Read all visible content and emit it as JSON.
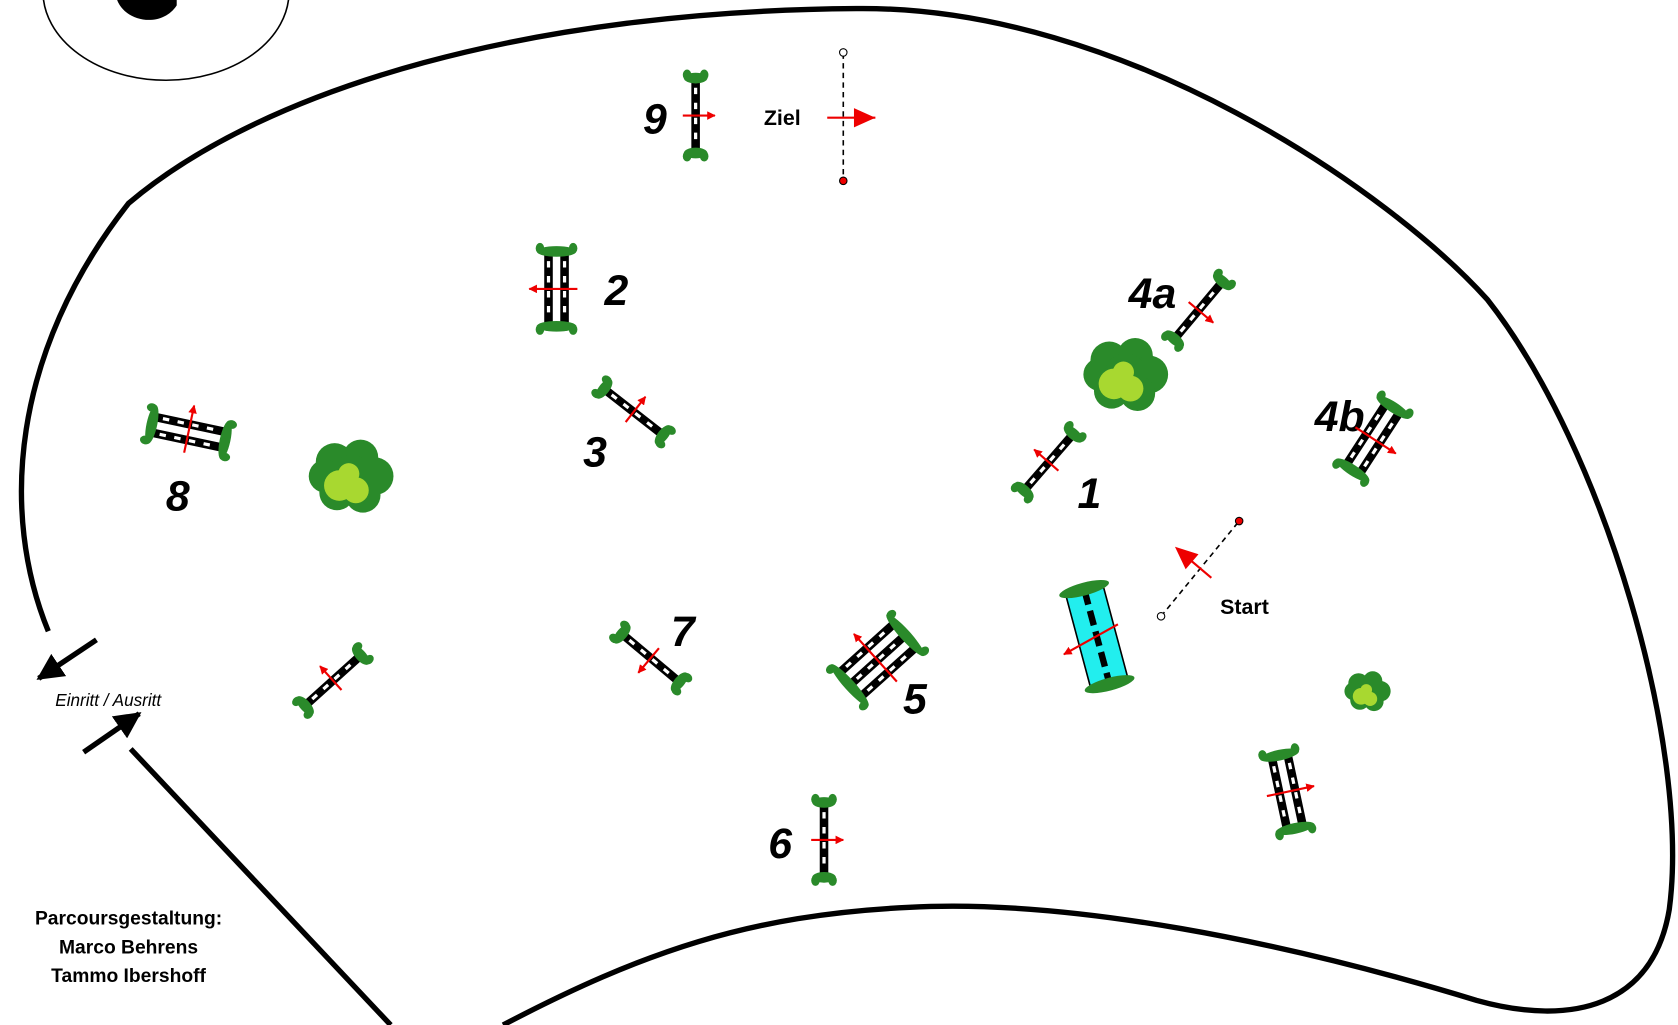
{
  "course": {
    "fences": [
      "1",
      "2",
      "3",
      "4a",
      "4b",
      "5",
      "6",
      "7",
      "8",
      "9"
    ],
    "finish": "Ziel",
    "start": "Start",
    "entrance": "Einritt / Ausritt"
  },
  "credits": {
    "title": "Parcoursgestaltung:",
    "designers": [
      "Marco Behrens",
      "Tammo Ibershoff"
    ]
  }
}
